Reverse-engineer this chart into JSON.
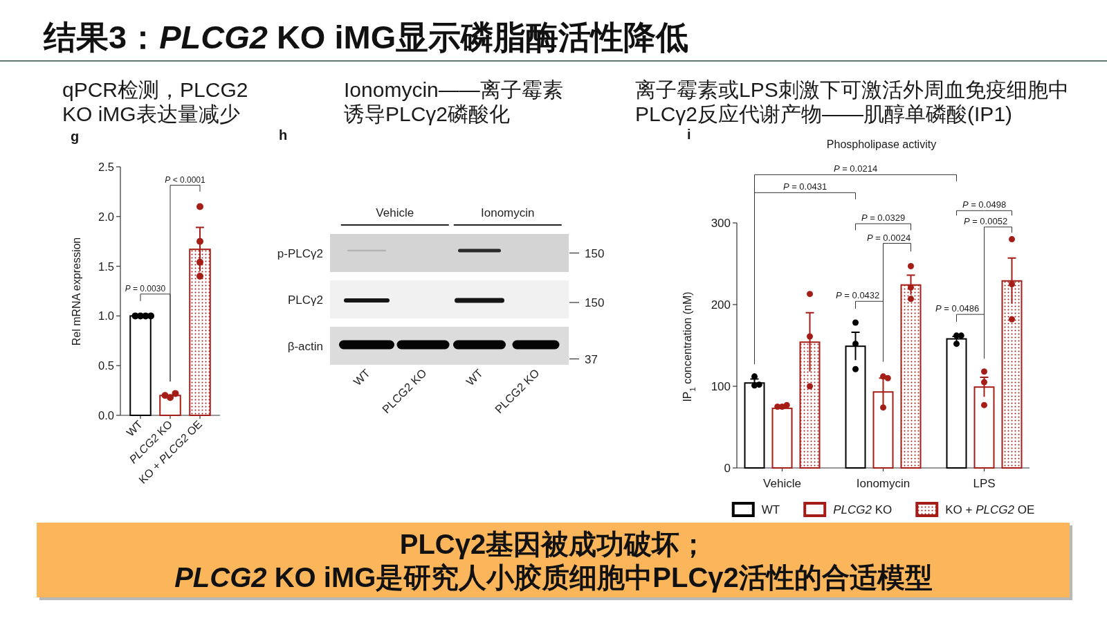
{
  "chart_data": [
    {
      "type": "other",
      "title": "结果3：*PLCG2* KO iMG显示磷脂酶活性降低",
      "annotations": [
        "PLCγ2基因被成功破坏；",
        "*PLCG2* KO iMG是研究人小胶质细胞中PLCγ2活性的合适模型"
      ]
    },
    {
      "type": "bar",
      "title": "qPCR检测，PLCG2 KO iMG表达量减少",
      "ylabel": "Rel mRNA expression",
      "categories": [
        "WT",
        "*PLCG2* KO",
        "KO + *PLCG2* OE"
      ],
      "ylim": [
        0,
        2.5
      ],
      "yticks": [
        {
          "value": 0,
          "label": "0.0"
        },
        0.5,
        {
          "value": 1,
          "label": "1.0"
        },
        1.5,
        {
          "value": 2,
          "label": "2.0"
        },
        2.5
      ],
      "series": [
        {
          "colors": [
            "#000000",
            "#a51d17",
            "#a51d17"
          ],
          "values": [
            1.0,
            0.2,
            1.67
          ],
          "errors": [
            null,
            null,
            0.22
          ]
        },
        {
          "type": "scatter",
          "marker": "circle",
          "color": "#000000",
          "x": [
            "WT",
            "WT",
            "WT",
            "WT"
          ],
          "values": [
            1.0,
            1.0,
            1.0,
            1.0
          ]
        },
        {
          "type": "scatter",
          "marker": "circle",
          "color": "#a51d17",
          "x": [
            "*PLCG2* KO",
            "*PLCG2* KO",
            "*PLCG2* KO"
          ],
          "values": [
            0.18,
            0.22,
            0.2
          ]
        },
        {
          "type": "scatter",
          "marker": "circle",
          "color": "#a51d17",
          "x": [
            "KO + *PLCG2* OE",
            "KO + *PLCG2* OE",
            "KO + *PLCG2* OE",
            "KO + *PLCG2* OE"
          ],
          "values": [
            2.1,
            1.75,
            1.54,
            1.4
          ]
        }
      ],
      "annotations": [
        "g",
        "*P* = 0.0030",
        "*P* < 0.0001"
      ]
    },
    {
      "type": "other",
      "title": "Ionomycin——离子霉素诱导PLCγ2磷酸化",
      "categories": [
        "WT",
        "PLCG2 KO",
        "WT",
        "PLCG2 KO"
      ],
      "y_categories": [
        "p-PLCγ2",
        "PLCγ2",
        "β-actin"
      ],
      "y2_categories": [
        "150",
        "150",
        "37"
      ],
      "annotations": [
        "h",
        "Vehicle",
        "Ionomycin"
      ]
    },
    {
      "type": "bar",
      "title": "离子霉素或LPS刺激下可激活外周血免疫细胞中PLCγ2反应代谢产物——肌醇单磷酸(IP1)",
      "subtitle": "Phospholipase activity",
      "ylabel": "IP$_{1}$ concentration (nM)",
      "categories": [
        "Vehicle",
        "Ionomycin",
        "LPS"
      ],
      "ylim": [
        0,
        300
      ],
      "yticks": [
        0,
        100,
        200,
        300
      ],
      "legend": "bottom",
      "series": [
        {
          "name": "WT",
          "color": "#000000",
          "values": [
            104,
            149,
            158
          ],
          "errors": [
            5,
            17,
            3
          ]
        },
        {
          "name": "*PLCG2* KO",
          "color": "#a51d17",
          "values": [
            73,
            93,
            99
          ],
          "errors": [
            1,
            17,
            12
          ]
        },
        {
          "name": "KO + *PLCG2* OE",
          "color": "#a51d17",
          "values": [
            154,
            224,
            229
          ],
          "errors": [
            36,
            12,
            28
          ]
        },
        {
          "type": "scatter",
          "marker": "circle",
          "color": "#000000",
          "x": [
            "Vehicle",
            "Vehicle",
            "Vehicle",
            "Ionomycin",
            "Ionomycin",
            "Ionomycin",
            "LPS",
            "LPS",
            "LPS"
          ],
          "values": [
            101,
            112,
            102,
            178,
            152,
            121,
            162,
            162,
            152
          ]
        },
        {
          "type": "scatter",
          "marker": "circle",
          "color": "#a51d17",
          "x": [
            "Vehicle",
            "Vehicle",
            "Vehicle",
            "Ionomycin",
            "Ionomycin",
            "Ionomycin",
            "LPS",
            "LPS",
            "LPS"
          ],
          "values": [
            75,
            77,
            75,
            112,
            110,
            74,
            118,
            105,
            77
          ]
        },
        {
          "type": "scatter",
          "marker": "circle",
          "color": "#a51d17",
          "x": [
            "Vehicle",
            "Vehicle",
            "Vehicle",
            "Ionomycin",
            "Ionomycin",
            "Ionomycin",
            "LPS",
            "LPS",
            "LPS"
          ],
          "values": [
            213,
            161,
            100,
            247,
            221,
            207,
            280,
            225,
            182
          ]
        }
      ],
      "annotations": [
        "i",
        "*P* = 0.0214",
        "*P* = 0.0431",
        "*P* = 0.0498",
        "*P* = 0.0329",
        "*P* = 0.0052",
        "*P* = 0.0024",
        "*P* = 0.0432",
        "*P* = 0.0486"
      ]
    }
  ]
}
